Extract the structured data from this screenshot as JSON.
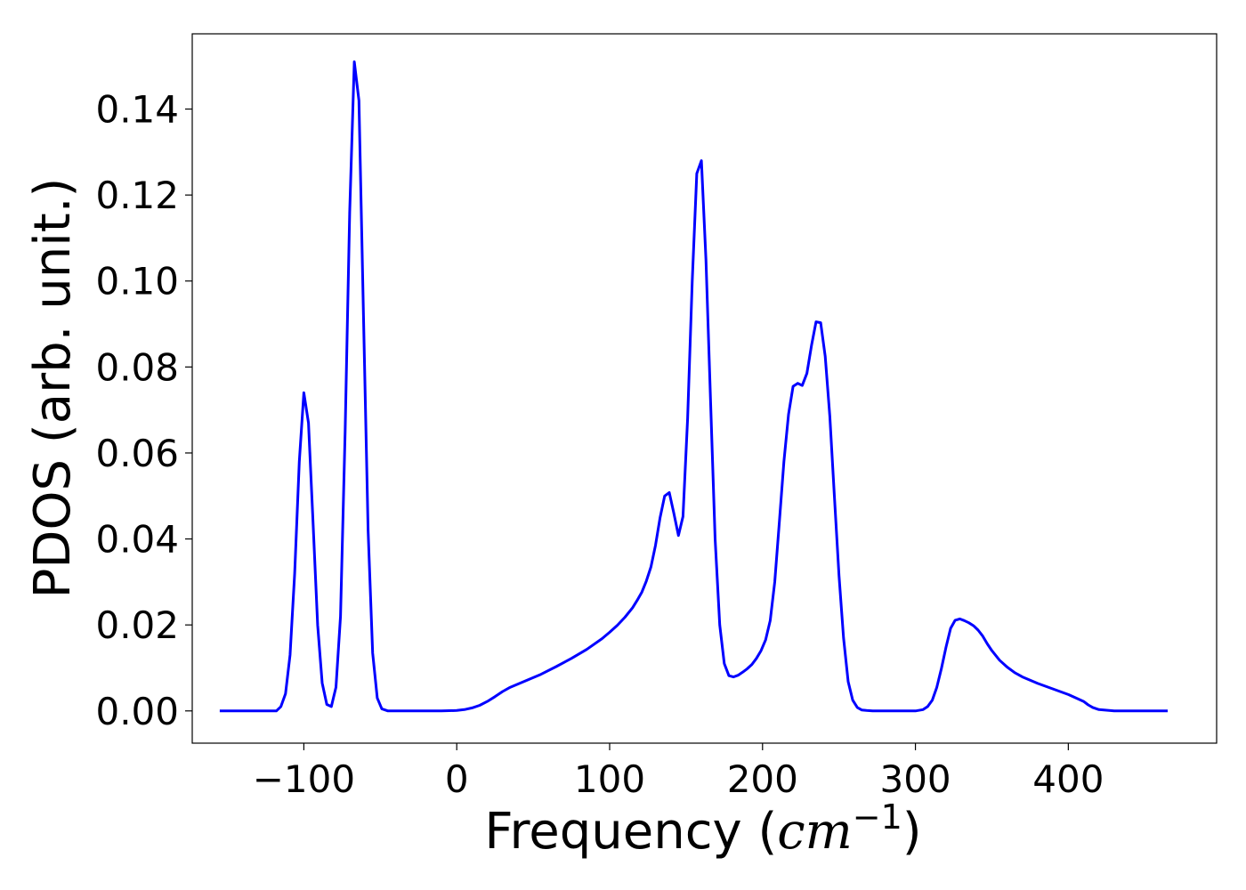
{
  "chart_data": {
    "type": "line",
    "title": "",
    "xlabel": "Frequency",
    "xlabel_paren_open": "(",
    "xlabel_unit_base": "cm",
    "xlabel_unit_exp": "−1",
    "xlabel_paren_close": ")",
    "ylabel": "PDOS (arb. unit.)",
    "xlim": [
      -173,
      497
    ],
    "ylim": [
      -0.0075,
      0.1575
    ],
    "xticks": [
      -100,
      0,
      100,
      200,
      300,
      400
    ],
    "xtick_labels": [
      "−100",
      "0",
      "100",
      "200",
      "300",
      "400"
    ],
    "yticks": [
      0.0,
      0.02,
      0.04,
      0.06,
      0.08,
      0.1,
      0.12,
      0.14
    ],
    "ytick_labels": [
      "0.00",
      "0.02",
      "0.04",
      "0.06",
      "0.08",
      "0.10",
      "0.12",
      "0.14"
    ],
    "grid": false,
    "line_color": "#0000ff",
    "series": [
      {
        "x": [
          -155,
          -140,
          -125,
          -118,
          -115,
          -112,
          -109,
          -106,
          -103,
          -100,
          -97,
          -94,
          -91,
          -88,
          -85,
          -82,
          -79,
          -76,
          -73,
          -70,
          -67,
          -64,
          -61,
          -58,
          -55,
          -52,
          -49,
          -45,
          -40,
          -30,
          -20,
          -10,
          0,
          5,
          10,
          15,
          20,
          25,
          30,
          35,
          45,
          55,
          65,
          75,
          85,
          95,
          100,
          105,
          110,
          115,
          118,
          121,
          124,
          127,
          130,
          133,
          136,
          139,
          142,
          145,
          148,
          151,
          154,
          157,
          160,
          163,
          166,
          169,
          172,
          175,
          178,
          181,
          184,
          187,
          190,
          193,
          196,
          199,
          202,
          205,
          208,
          211,
          214,
          217,
          220,
          223,
          226,
          229,
          232,
          235,
          238,
          241,
          244,
          247,
          250,
          253,
          256,
          259,
          262,
          265,
          268,
          272,
          280,
          290,
          300,
          305,
          308,
          311,
          314,
          317,
          320,
          323,
          326,
          329,
          332,
          335,
          338,
          341,
          344,
          347,
          350,
          355,
          360,
          365,
          370,
          380,
          390,
          400,
          405,
          410,
          413,
          416,
          420,
          430,
          440,
          450,
          465
        ],
        "y": [
          0.0,
          0.0,
          0.0,
          0.0,
          0.001,
          0.004,
          0.013,
          0.032,
          0.058,
          0.074,
          0.067,
          0.044,
          0.02,
          0.0065,
          0.0015,
          0.001,
          0.0055,
          0.022,
          0.065,
          0.116,
          0.151,
          0.142,
          0.092,
          0.042,
          0.0135,
          0.003,
          0.0005,
          0.0,
          0.0,
          0.0,
          0.0,
          0.0,
          0.0001,
          0.0003,
          0.0007,
          0.0013,
          0.0022,
          0.0033,
          0.0045,
          0.0055,
          0.007,
          0.0085,
          0.0103,
          0.0122,
          0.0143,
          0.0168,
          0.0183,
          0.0199,
          0.0218,
          0.024,
          0.0257,
          0.0276,
          0.0302,
          0.0335,
          0.0385,
          0.045,
          0.05,
          0.0508,
          0.046,
          0.0408,
          0.0452,
          0.068,
          0.1,
          0.125,
          0.128,
          0.105,
          0.072,
          0.04,
          0.02,
          0.011,
          0.0082,
          0.0079,
          0.0083,
          0.009,
          0.0098,
          0.0108,
          0.0122,
          0.014,
          0.0165,
          0.021,
          0.03,
          0.044,
          0.058,
          0.069,
          0.0755,
          0.0762,
          0.0757,
          0.0785,
          0.085,
          0.0905,
          0.0903,
          0.0825,
          0.0685,
          0.05,
          0.0315,
          0.017,
          0.0068,
          0.0025,
          0.0008,
          0.0002,
          0.0001,
          0.0,
          0.0,
          0.0,
          0.0,
          0.0003,
          0.001,
          0.0025,
          0.0055,
          0.0099,
          0.0148,
          0.0192,
          0.0211,
          0.0214,
          0.021,
          0.0205,
          0.0198,
          0.0188,
          0.0174,
          0.0156,
          0.014,
          0.0118,
          0.0102,
          0.0089,
          0.0079,
          0.0064,
          0.0051,
          0.0038,
          0.003,
          0.0022,
          0.0014,
          0.0008,
          0.0003,
          0.0,
          0.0,
          0.0,
          0.0
        ]
      }
    ]
  }
}
